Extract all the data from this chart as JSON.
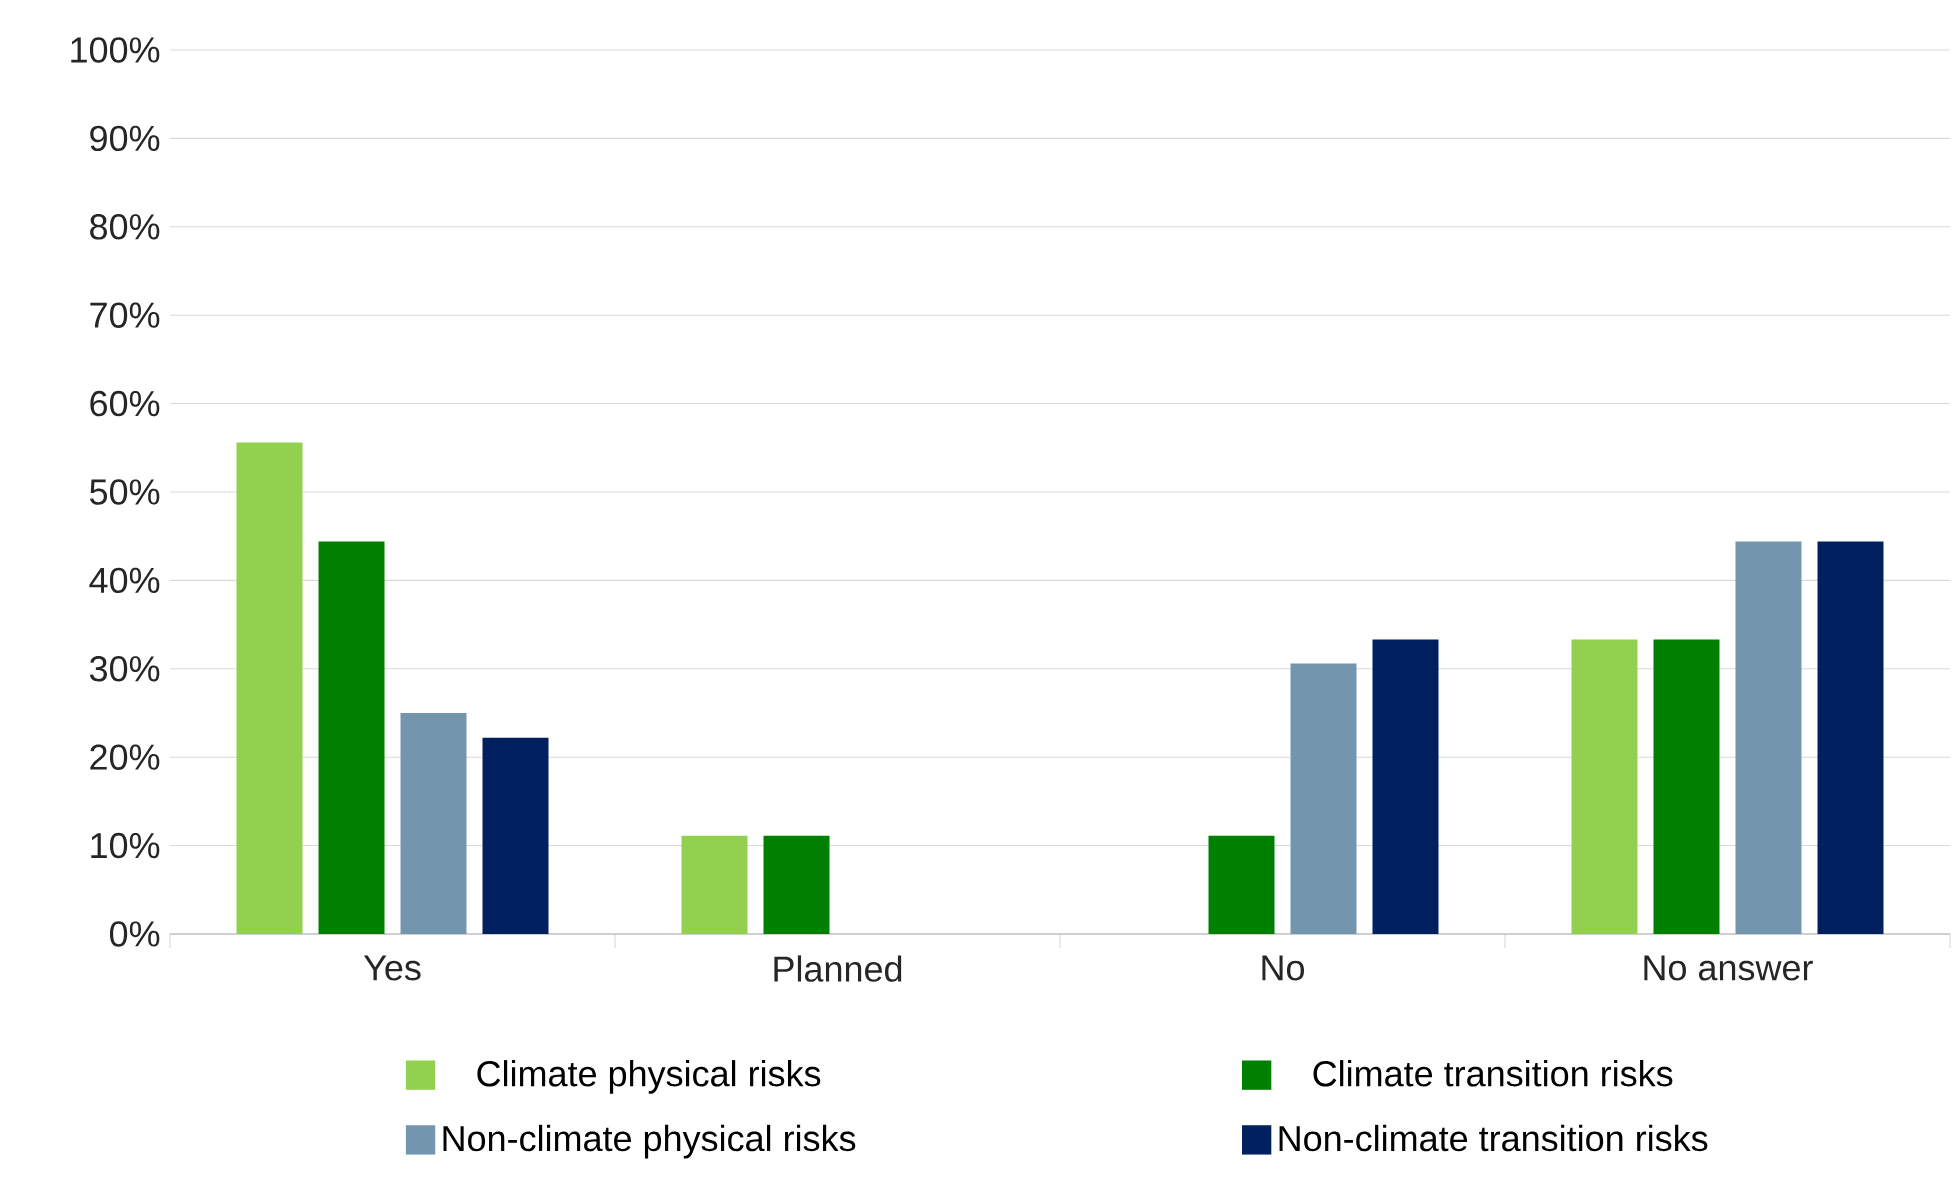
{
  "chart_data": {
    "type": "bar",
    "categories": [
      "Yes",
      "Planned",
      "No",
      "No answer"
    ],
    "series": [
      {
        "name": "Climate physical risks",
        "color": "#92d050",
        "values": [
          55.6,
          11.1,
          0,
          33.3
        ]
      },
      {
        "name": "Climate transition risks",
        "color": "#008000",
        "values": [
          44.4,
          11.1,
          11.1,
          33.3
        ]
      },
      {
        "name": "Non-climate physical risks",
        "color": "#7396ae",
        "values": [
          25,
          0,
          30.6,
          44.4
        ]
      },
      {
        "name": "Non-climate transition risks",
        "color": "#002060",
        "values": [
          22.2,
          0,
          33.3,
          44.4
        ]
      }
    ],
    "ylim": [
      0,
      100
    ],
    "yticks": [
      {
        "value": 0,
        "label": "0%"
      },
      {
        "value": 10,
        "label": "10%"
      },
      {
        "value": 20,
        "label": "20%"
      },
      {
        "value": 30,
        "label": "30%"
      },
      {
        "value": 40,
        "label": "40%"
      },
      {
        "value": 50,
        "label": "50%"
      },
      {
        "value": 60,
        "label": "60%"
      },
      {
        "value": 70,
        "label": "70%"
      },
      {
        "value": 80,
        "label": "80%"
      },
      {
        "value": 90,
        "label": "90%"
      },
      {
        "value": 100,
        "label": "100%"
      }
    ],
    "grid": "y",
    "legend": "bottom"
  }
}
